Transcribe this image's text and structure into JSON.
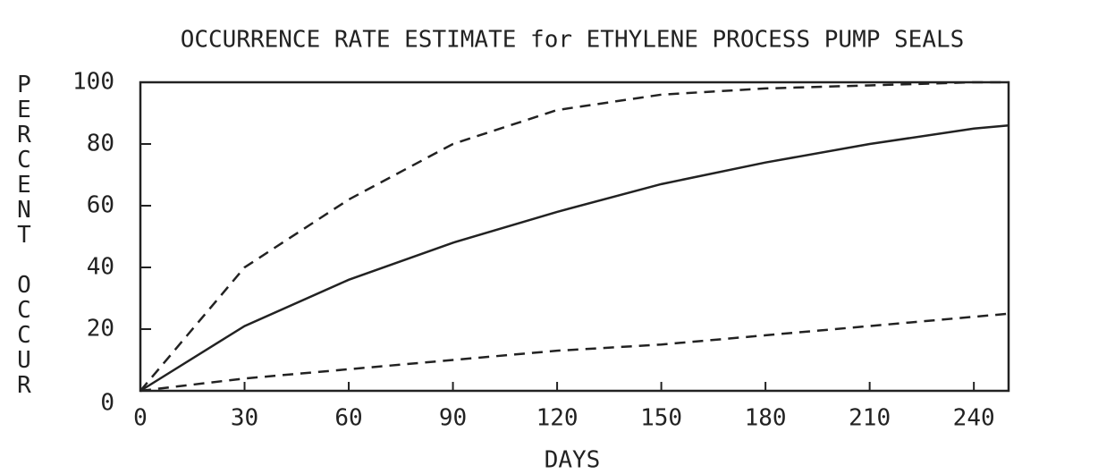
{
  "chart_data": {
    "type": "line",
    "title": "OCCURRENCE RATE ESTIMATE for ETHYLENE PROCESS PUMP SEALS",
    "xlabel": "DAYS",
    "ylabel": "PERCENT OCCUR",
    "x": [
      0,
      30,
      60,
      90,
      120,
      150,
      180,
      210,
      240,
      250
    ],
    "series": [
      {
        "color": "#222222",
        "style": "dashed",
        "values": [
          0,
          40,
          62,
          80,
          91,
          96,
          98,
          99,
          100,
          100
        ]
      },
      {
        "color": "#222222",
        "style": "solid",
        "values": [
          0,
          21,
          36,
          48,
          58,
          67,
          74,
          80,
          85,
          86
        ]
      },
      {
        "color": "#222222",
        "style": "dashed",
        "values": [
          0,
          4,
          7,
          10,
          13,
          15,
          18,
          21,
          24,
          25
        ]
      }
    ],
    "xlim": [
      0,
      250
    ],
    "xticks": [
      0,
      30,
      60,
      90,
      120,
      150,
      180,
      210,
      240
    ],
    "ylim": [
      0,
      100
    ],
    "yticks": [
      0,
      20,
      40,
      60,
      80,
      100
    ]
  }
}
